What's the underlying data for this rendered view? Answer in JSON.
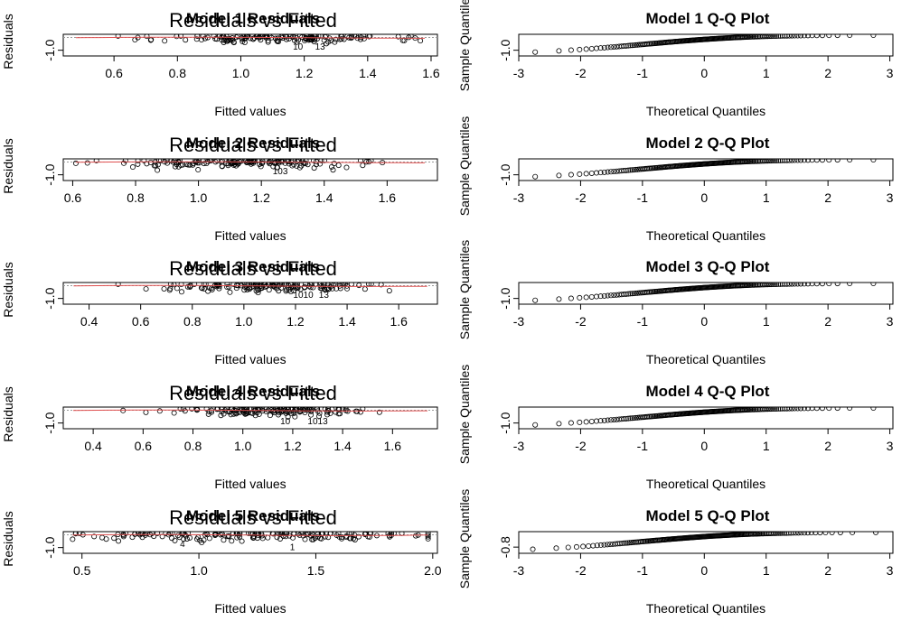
{
  "chart_data": [
    {
      "type": "scatter",
      "title": "Model 1 Residuals",
      "overlay_title": "Residuals vs Fitted",
      "xlabel": "Fitted values",
      "ylabel": "Residuals",
      "xlim": [
        0.44,
        1.62
      ],
      "ylim": [
        -1.45,
        0.25
      ],
      "xticks": [
        0.6,
        0.8,
        1.0,
        1.2,
        1.4,
        1.6
      ],
      "xtick_labels": [
        "0.6",
        "0.8",
        "1.0",
        "1.2",
        "1.4",
        "1.6"
      ],
      "yticks": [
        -1.0
      ],
      "ytick_labels": [
        "-1.0"
      ],
      "seed": 11,
      "fitted_center": 1.12,
      "fitted_spread": 0.18,
      "n_points": 160,
      "point_labels": [
        {
          "text": "10",
          "x": 1.18,
          "y": -0.95
        },
        {
          "text": "13",
          "x": 1.25,
          "y": -0.95
        }
      ]
    },
    {
      "type": "scatter",
      "title": "Model 2 Residuals",
      "overlay_title": "Residuals vs Fitted",
      "xlabel": "Fitted values",
      "ylabel": "Residuals",
      "xlim": [
        0.57,
        1.76
      ],
      "ylim": [
        -1.45,
        0.25
      ],
      "xticks": [
        0.6,
        0.8,
        1.0,
        1.2,
        1.4,
        1.6
      ],
      "xtick_labels": [
        "0.6",
        "0.8",
        "1.0",
        "1.2",
        "1.4",
        "1.6"
      ],
      "yticks": [
        -1.0
      ],
      "ytick_labels": [
        "-1.0"
      ],
      "seed": 22,
      "fitted_center": 1.14,
      "fitted_spread": 0.18,
      "n_points": 160,
      "point_labels": [
        {
          "text": "103",
          "x": 1.26,
          "y": -0.95
        }
      ]
    },
    {
      "type": "scatter",
      "title": "Model 3 Residuals",
      "overlay_title": "Residuals vs Fitted",
      "xlabel": "Fitted values",
      "ylabel": "Residuals",
      "xlim": [
        0.3,
        1.75
      ],
      "ylim": [
        -1.45,
        0.25
      ],
      "xticks": [
        0.4,
        0.6,
        0.8,
        1.0,
        1.2,
        1.4,
        1.6
      ],
      "xtick_labels": [
        "0.4",
        "0.6",
        "0.8",
        "1.0",
        "1.2",
        "1.4",
        "1.6"
      ],
      "yticks": [
        -1.0
      ],
      "ytick_labels": [
        "-1.0"
      ],
      "seed": 33,
      "fitted_center": 1.1,
      "fitted_spread": 0.2,
      "n_points": 160,
      "point_labels": [
        {
          "text": "1010",
          "x": 1.23,
          "y": -0.95
        },
        {
          "text": "13",
          "x": 1.31,
          "y": -0.95
        }
      ]
    },
    {
      "type": "scatter",
      "title": "Model 4 Residuals",
      "overlay_title": "Residuals vs Fitted",
      "xlabel": "Fitted values",
      "ylabel": "Residuals",
      "xlim": [
        0.28,
        1.78
      ],
      "ylim": [
        -1.45,
        0.25
      ],
      "xticks": [
        0.4,
        0.6,
        0.8,
        1.0,
        1.2,
        1.4,
        1.6
      ],
      "xtick_labels": [
        "0.4",
        "0.6",
        "0.8",
        "1.0",
        "1.2",
        "1.4",
        "1.6"
      ],
      "yticks": [
        -1.0
      ],
      "ytick_labels": [
        "-1.0"
      ],
      "seed": 44,
      "fitted_center": 1.12,
      "fitted_spread": 0.2,
      "n_points": 160,
      "point_labels": [
        {
          "text": "10",
          "x": 1.17,
          "y": -1.1
        },
        {
          "text": "1013",
          "x": 1.3,
          "y": -1.1
        }
      ]
    },
    {
      "type": "scatter",
      "title": "Model 5 Residuals",
      "overlay_title": "Residuals vs Fitted",
      "xlabel": "Fitted values",
      "ylabel": "Residuals",
      "xlim": [
        0.42,
        2.02
      ],
      "ylim": [
        -1.45,
        0.25
      ],
      "xticks": [
        0.5,
        1.0,
        1.5,
        2.0
      ],
      "xtick_labels": [
        "0.5",
        "1.0",
        "1.5",
        "2.0"
      ],
      "yticks": [
        -1.0
      ],
      "ytick_labels": [
        "-1.0"
      ],
      "seed": 55,
      "fitted_center": 1.2,
      "fitted_spread": 0.4,
      "n_points": 180,
      "point_labels": [
        {
          "text": "4",
          "x": 0.93,
          "y": -0.95
        },
        {
          "text": "1",
          "x": 1.4,
          "y": -1.2
        }
      ]
    },
    {
      "type": "scatter",
      "title": "Model 1 Q-Q Plot",
      "xlabel": "Theoretical Quantiles",
      "ylabel": "Sample Quantiles",
      "xlim": [
        -3.0,
        3.05
      ],
      "ylim": [
        -1.45,
        0.25
      ],
      "xticks": [
        -3,
        -2,
        -1,
        0,
        1,
        2,
        3
      ],
      "xtick_labels": [
        "-3",
        "-2",
        "-1",
        "0",
        "1",
        "2",
        "3"
      ],
      "yticks": [
        -1.0
      ],
      "ytick_labels": [
        "-1.0"
      ],
      "n_points": 160,
      "qq_min": -1.35,
      "qq_max": 0.18
    },
    {
      "type": "scatter",
      "title": "Model 2 Q-Q Plot",
      "xlabel": "Theoretical Quantiles",
      "ylabel": "Sample Quantiles",
      "xlim": [
        -3.0,
        3.05
      ],
      "ylim": [
        -1.45,
        0.25
      ],
      "xticks": [
        -3,
        -2,
        -1,
        0,
        1,
        2,
        3
      ],
      "xtick_labels": [
        "-3",
        "-2",
        "-1",
        "0",
        "1",
        "2",
        "3"
      ],
      "yticks": [
        -1.0
      ],
      "ytick_labels": [
        "-1.0"
      ],
      "n_points": 160,
      "qq_min": -1.35,
      "qq_max": 0.18
    },
    {
      "type": "scatter",
      "title": "Model 3 Q-Q Plot",
      "xlabel": "Theoretical Quantiles",
      "ylabel": "Sample Quantiles",
      "xlim": [
        -3.0,
        3.05
      ],
      "ylim": [
        -1.45,
        0.25
      ],
      "xticks": [
        -3,
        -2,
        -1,
        0,
        1,
        2,
        3
      ],
      "xtick_labels": [
        "-3",
        "-2",
        "-1",
        "0",
        "1",
        "2",
        "3"
      ],
      "yticks": [
        -1.0
      ],
      "ytick_labels": [
        "-1.0"
      ],
      "n_points": 160,
      "qq_min": -1.35,
      "qq_max": 0.18
    },
    {
      "type": "scatter",
      "title": "Model 4 Q-Q Plot",
      "xlabel": "Theoretical Quantiles",
      "ylabel": "Sample Quantiles",
      "xlim": [
        -3.0,
        3.05
      ],
      "ylim": [
        -1.45,
        0.25
      ],
      "xticks": [
        -3,
        -2,
        -1,
        0,
        1,
        2,
        3
      ],
      "xtick_labels": [
        "-3",
        "-2",
        "-1",
        "0",
        "1",
        "2",
        "3"
      ],
      "yticks": [
        -1.0
      ],
      "ytick_labels": [
        "-1.0"
      ],
      "n_points": 160,
      "qq_min": -1.35,
      "qq_max": 0.18
    },
    {
      "type": "scatter",
      "title": "Model 5 Q-Q Plot",
      "xlabel": "Theoretical Quantiles",
      "ylabel": "Sample Quantiles",
      "xlim": [
        -3.0,
        3.05
      ],
      "ylim": [
        -1.2,
        0.2
      ],
      "xticks": [
        -3,
        -2,
        -1,
        0,
        1,
        2,
        3
      ],
      "xtick_labels": [
        "-3",
        "-2",
        "-1",
        "0",
        "1",
        "2",
        "3"
      ],
      "yticks": [
        -0.8
      ],
      "ytick_labels": [
        "-0.8"
      ],
      "n_points": 180,
      "qq_min": -1.1,
      "qq_max": 0.15
    }
  ],
  "colors": {
    "points": "#000000",
    "smooth_line": "#e05050",
    "reference_line": "#999999",
    "axes": "#000000"
  }
}
